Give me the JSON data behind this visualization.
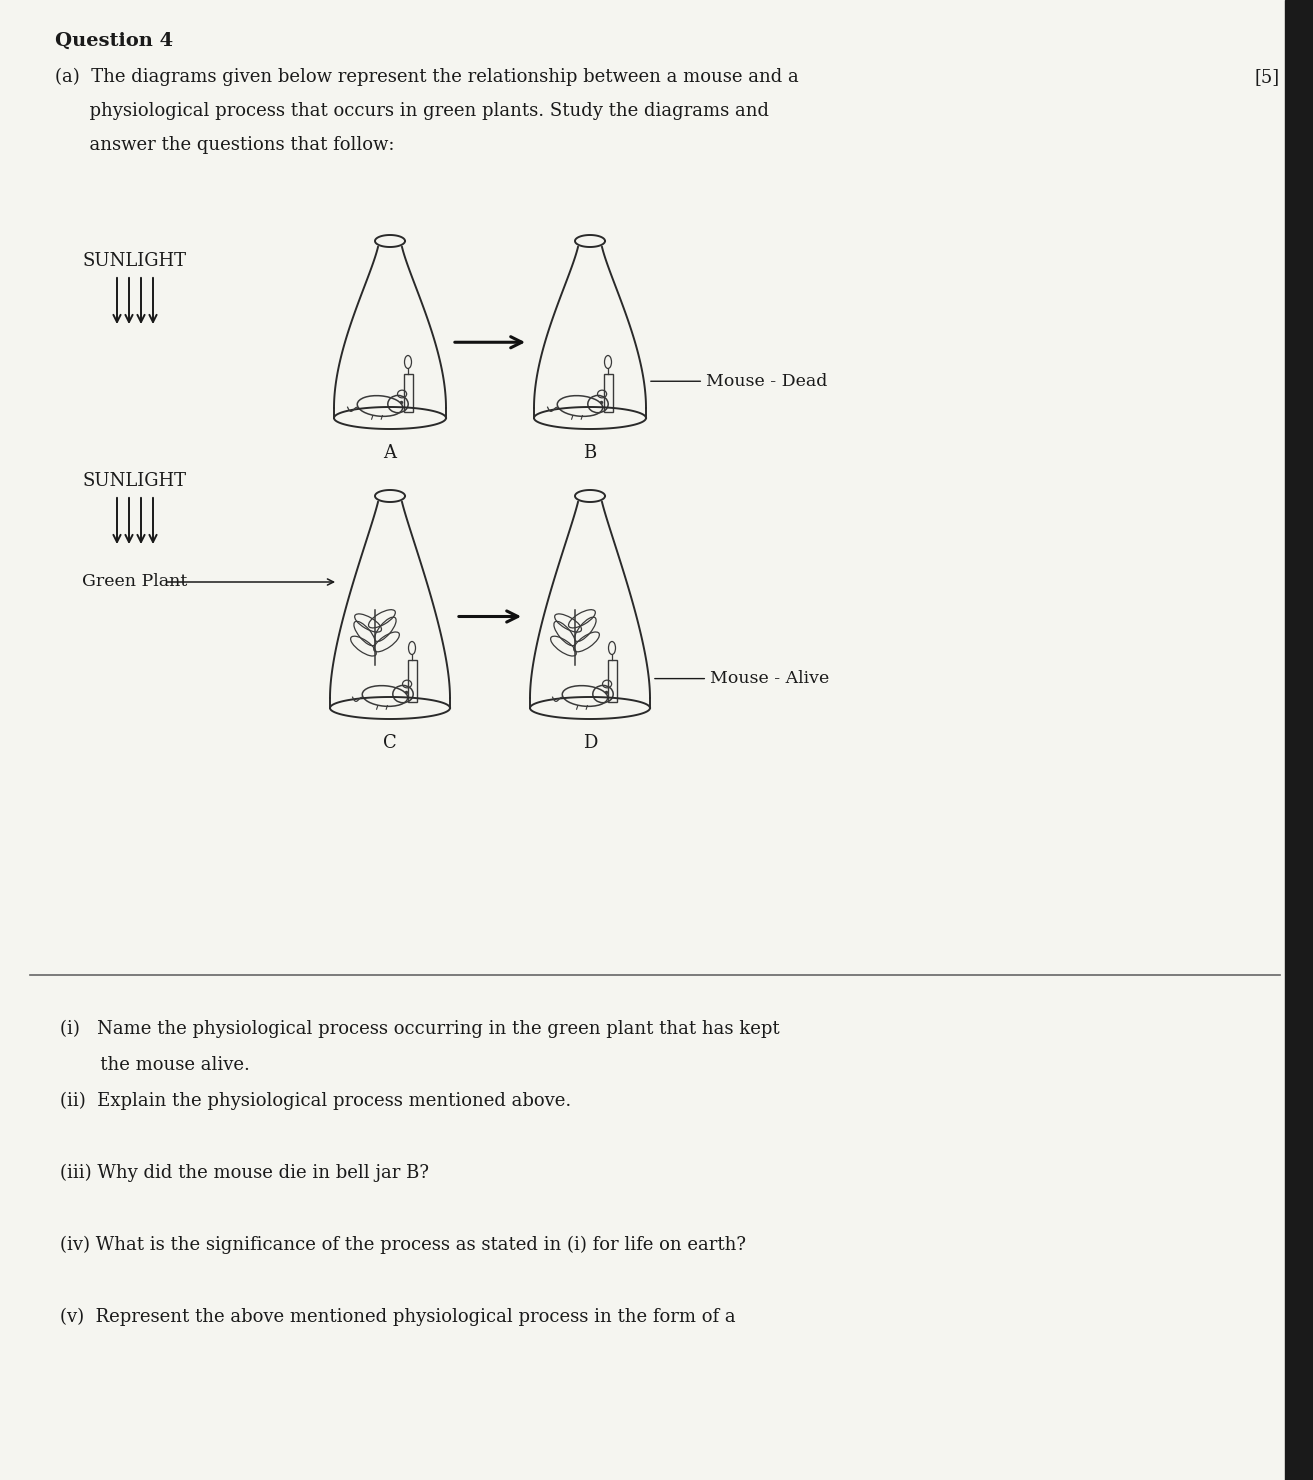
{
  "title": "Question 4",
  "bg_color": "#f5f5f0",
  "text_color": "#1a1a1a",
  "line1": "(a)  The diagrams given below represent the relationship between a mouse and a",
  "line2": "      physiological process that occurs in green plants. Study the diagrams and",
  "line3": "      answer the questions that follow:",
  "marks": "[5]",
  "sunlight_label1": "SUNLIGHT",
  "sunlight_label2": "SUNLIGHT",
  "green_plant_label": "Green Plant",
  "mouse_dead_label": "Mouse - Dead",
  "mouse_alive_label": "Mouse - Alive",
  "jar_labels": [
    "A",
    "B",
    "C",
    "D"
  ],
  "sq1a": "(i)   Name the physiological process occurring in the green plant that has kept",
  "sq1b": "       the mouse alive.",
  "sq2": "(ii)  Explain the physiological process mentioned above.",
  "sq3": "(iii) Why did the mouse die in bell jar B?",
  "sq4": "(iv) What is the significance of the process as stated in (i) for life on earth?",
  "sq5": "(v)  Represent the above mentioned physiological process in the form of a",
  "jar_color": "#2a2a2a",
  "dark_bar_color": "#1a1a1a",
  "sep_line_color": "#666666"
}
